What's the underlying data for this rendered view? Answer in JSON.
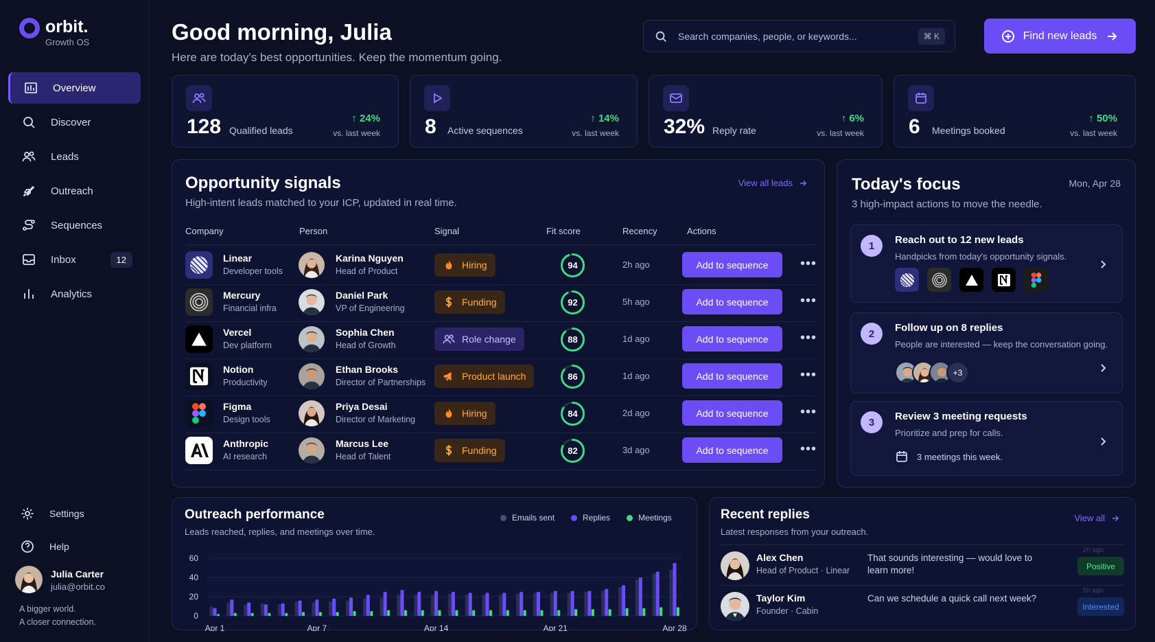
{
  "app": {
    "name": "orbit.",
    "subtitle": "Growth OS"
  },
  "sidebar": {
    "items": [
      {
        "label": "Overview",
        "icon": "chart-bar-icon",
        "active": true
      },
      {
        "label": "Discover",
        "icon": "search-icon"
      },
      {
        "label": "Leads",
        "icon": "users-icon"
      },
      {
        "label": "Outreach",
        "icon": "rocket-icon"
      },
      {
        "label": "Sequences",
        "icon": "route-icon"
      },
      {
        "label": "Inbox",
        "icon": "inbox-icon",
        "badge": "12"
      },
      {
        "label": "Analytics",
        "icon": "analytics-icon"
      }
    ],
    "settings": "Settings",
    "help": "Help",
    "user": {
      "name": "Julia Carter",
      "email": "julia@orbit.co"
    },
    "tagline1": "A bigger world.",
    "tagline2": "A closer connection."
  },
  "header": {
    "title": "Good morning, Julia",
    "subtitle": "Here are today's best opportunities. Keep the momentum going.",
    "search_placeholder": "Search companies, people, or keywords...",
    "search_shortcut": "⌘  K",
    "cta": "Find new leads"
  },
  "stats": [
    {
      "value": "128",
      "label": "Qualified leads",
      "delta": "24%",
      "compare": "vs. last week",
      "icon": "users-icon"
    },
    {
      "value": "8",
      "label": "Active sequences",
      "delta": "14%",
      "compare": "vs. last week",
      "icon": "play-icon"
    },
    {
      "value": "32%",
      "label": "Reply rate",
      "delta": "6%",
      "compare": "vs. last week",
      "icon": "mail-icon"
    },
    {
      "value": "6",
      "label": "Meetings booked",
      "delta": "50%",
      "compare": "vs. last week",
      "icon": "calendar-icon"
    }
  ],
  "opportunity": {
    "title": "Opportunity signals",
    "subtitle": "High-intent leads matched to your ICP, updated in real time.",
    "view_all": "View all leads",
    "columns": [
      "Company",
      "Person",
      "Signal",
      "Fit score",
      "Recency",
      "Actions"
    ],
    "action_label": "Add to sequence",
    "rows": [
      {
        "company": "Linear",
        "industry": "Developer tools",
        "person": "Karina Nguyen",
        "title": "Head of Product",
        "signal": "Hiring",
        "signal_kind": "orange",
        "signal_icon": "flame-icon",
        "fit": "94",
        "fit_pct": 0.94,
        "recency": "2h ago"
      },
      {
        "company": "Mercury",
        "industry": "Financial infra",
        "person": "Daniel Park",
        "title": "VP of Engineering",
        "signal": "Funding",
        "signal_kind": "orange",
        "signal_icon": "dollar-icon",
        "fit": "92",
        "fit_pct": 0.92,
        "recency": "5h ago"
      },
      {
        "company": "Vercel",
        "industry": "Dev platform",
        "person": "Sophia Chen",
        "title": "Head of Growth",
        "signal": "Role change",
        "signal_kind": "purple",
        "signal_icon": "users-icon",
        "fit": "88",
        "fit_pct": 0.88,
        "recency": "1d ago"
      },
      {
        "company": "Notion",
        "industry": "Productivity",
        "person": "Ethan Brooks",
        "title": "Director of Partnerships",
        "signal": "Product launch",
        "signal_kind": "orange",
        "signal_icon": "megaphone-icon",
        "fit": "86",
        "fit_pct": 0.86,
        "recency": "1d ago"
      },
      {
        "company": "Figma",
        "industry": "Design tools",
        "person": "Priya Desai",
        "title": "Director of Marketing",
        "signal": "Hiring",
        "signal_kind": "orange",
        "signal_icon": "flame-icon",
        "fit": "84",
        "fit_pct": 0.84,
        "recency": "2d ago"
      },
      {
        "company": "Anthropic",
        "industry": "AI research",
        "person": "Marcus Lee",
        "title": "Head of Talent",
        "signal": "Funding",
        "signal_kind": "orange",
        "signal_icon": "dollar-icon",
        "fit": "82",
        "fit_pct": 0.82,
        "recency": "3d ago"
      }
    ]
  },
  "focus": {
    "title": "Today's focus",
    "date": "Mon, Apr 28",
    "subtitle": "3 high-impact actions to move the needle.",
    "tasks": [
      {
        "num": "1",
        "title": "Reach out to 12 new leads",
        "desc": "Handpicks from today's opportunity signals."
      },
      {
        "num": "2",
        "title": "Follow up on 8 replies",
        "desc": "People are interested — keep the conversation going.",
        "more": "+3"
      },
      {
        "num": "3",
        "title": "Review 3 meeting requests",
        "desc": "Prioritize and prep for calls.",
        "meta": "3 meetings this week."
      }
    ]
  },
  "performance": {
    "title": "Outreach performance",
    "subtitle": "Leads reached, replies, and meetings over time.",
    "legend": [
      "Emails sent",
      "Replies",
      "Meetings"
    ]
  },
  "chart_data": {
    "type": "bar",
    "x": [
      "Apr 1",
      "Apr 2",
      "Apr 3",
      "Apr 4",
      "Apr 5",
      "Apr 6",
      "Apr 7",
      "Apr 8",
      "Apr 9",
      "Apr 10",
      "Apr 11",
      "Apr 12",
      "Apr 13",
      "Apr 14",
      "Apr 15",
      "Apr 16",
      "Apr 17",
      "Apr 18",
      "Apr 19",
      "Apr 20",
      "Apr 21",
      "Apr 22",
      "Apr 23",
      "Apr 24",
      "Apr 25",
      "Apr 26",
      "Apr 27",
      "Apr 28"
    ],
    "x_ticks": [
      "Apr 1",
      "Apr 7",
      "Apr 14",
      "Apr 21",
      "Apr 28"
    ],
    "y_ticks": [
      "0",
      "20",
      "40",
      "60"
    ],
    "ylim": [
      0,
      60
    ],
    "colors": {
      "Emails sent": "#2a2f5e",
      "Replies": "#6a4df5",
      "Meetings": "#3ddc84"
    },
    "series": [
      {
        "name": "Emails sent",
        "values": [
          10,
          14,
          12,
          13,
          12,
          15,
          14,
          15,
          16,
          18,
          19,
          22,
          22,
          22,
          23,
          22,
          22,
          22,
          23,
          24,
          24,
          24,
          25,
          26,
          30,
          38,
          44,
          48
        ]
      },
      {
        "name": "Replies",
        "values": [
          8,
          17,
          14,
          12,
          13,
          16,
          17,
          18,
          19,
          22,
          25,
          27,
          25,
          26,
          25,
          24,
          24,
          24,
          25,
          25,
          26,
          26,
          26,
          28,
          32,
          40,
          46,
          55
        ]
      },
      {
        "name": "Meetings",
        "values": [
          2,
          3,
          3,
          3,
          3,
          4,
          4,
          4,
          5,
          5,
          6,
          6,
          6,
          6,
          6,
          6,
          6,
          6,
          6,
          6,
          6,
          7,
          7,
          7,
          8,
          8,
          9,
          9
        ]
      }
    ]
  },
  "replies": {
    "title": "Recent replies",
    "subtitle": "Latest responses from your outreach.",
    "view_all": "View all",
    "items": [
      {
        "name": "Alex Chen",
        "title": "Head of Product · Linear",
        "message": "That sounds interesting — would love to learn more!",
        "time": "2h ago",
        "status": "Positive",
        "kind": "pos"
      },
      {
        "name": "Taylor Kim",
        "title": "Founder · Cabin",
        "message": "Can we schedule a quick call next week?",
        "time": "5h ago",
        "status": "Interested",
        "kind": "int"
      }
    ]
  }
}
